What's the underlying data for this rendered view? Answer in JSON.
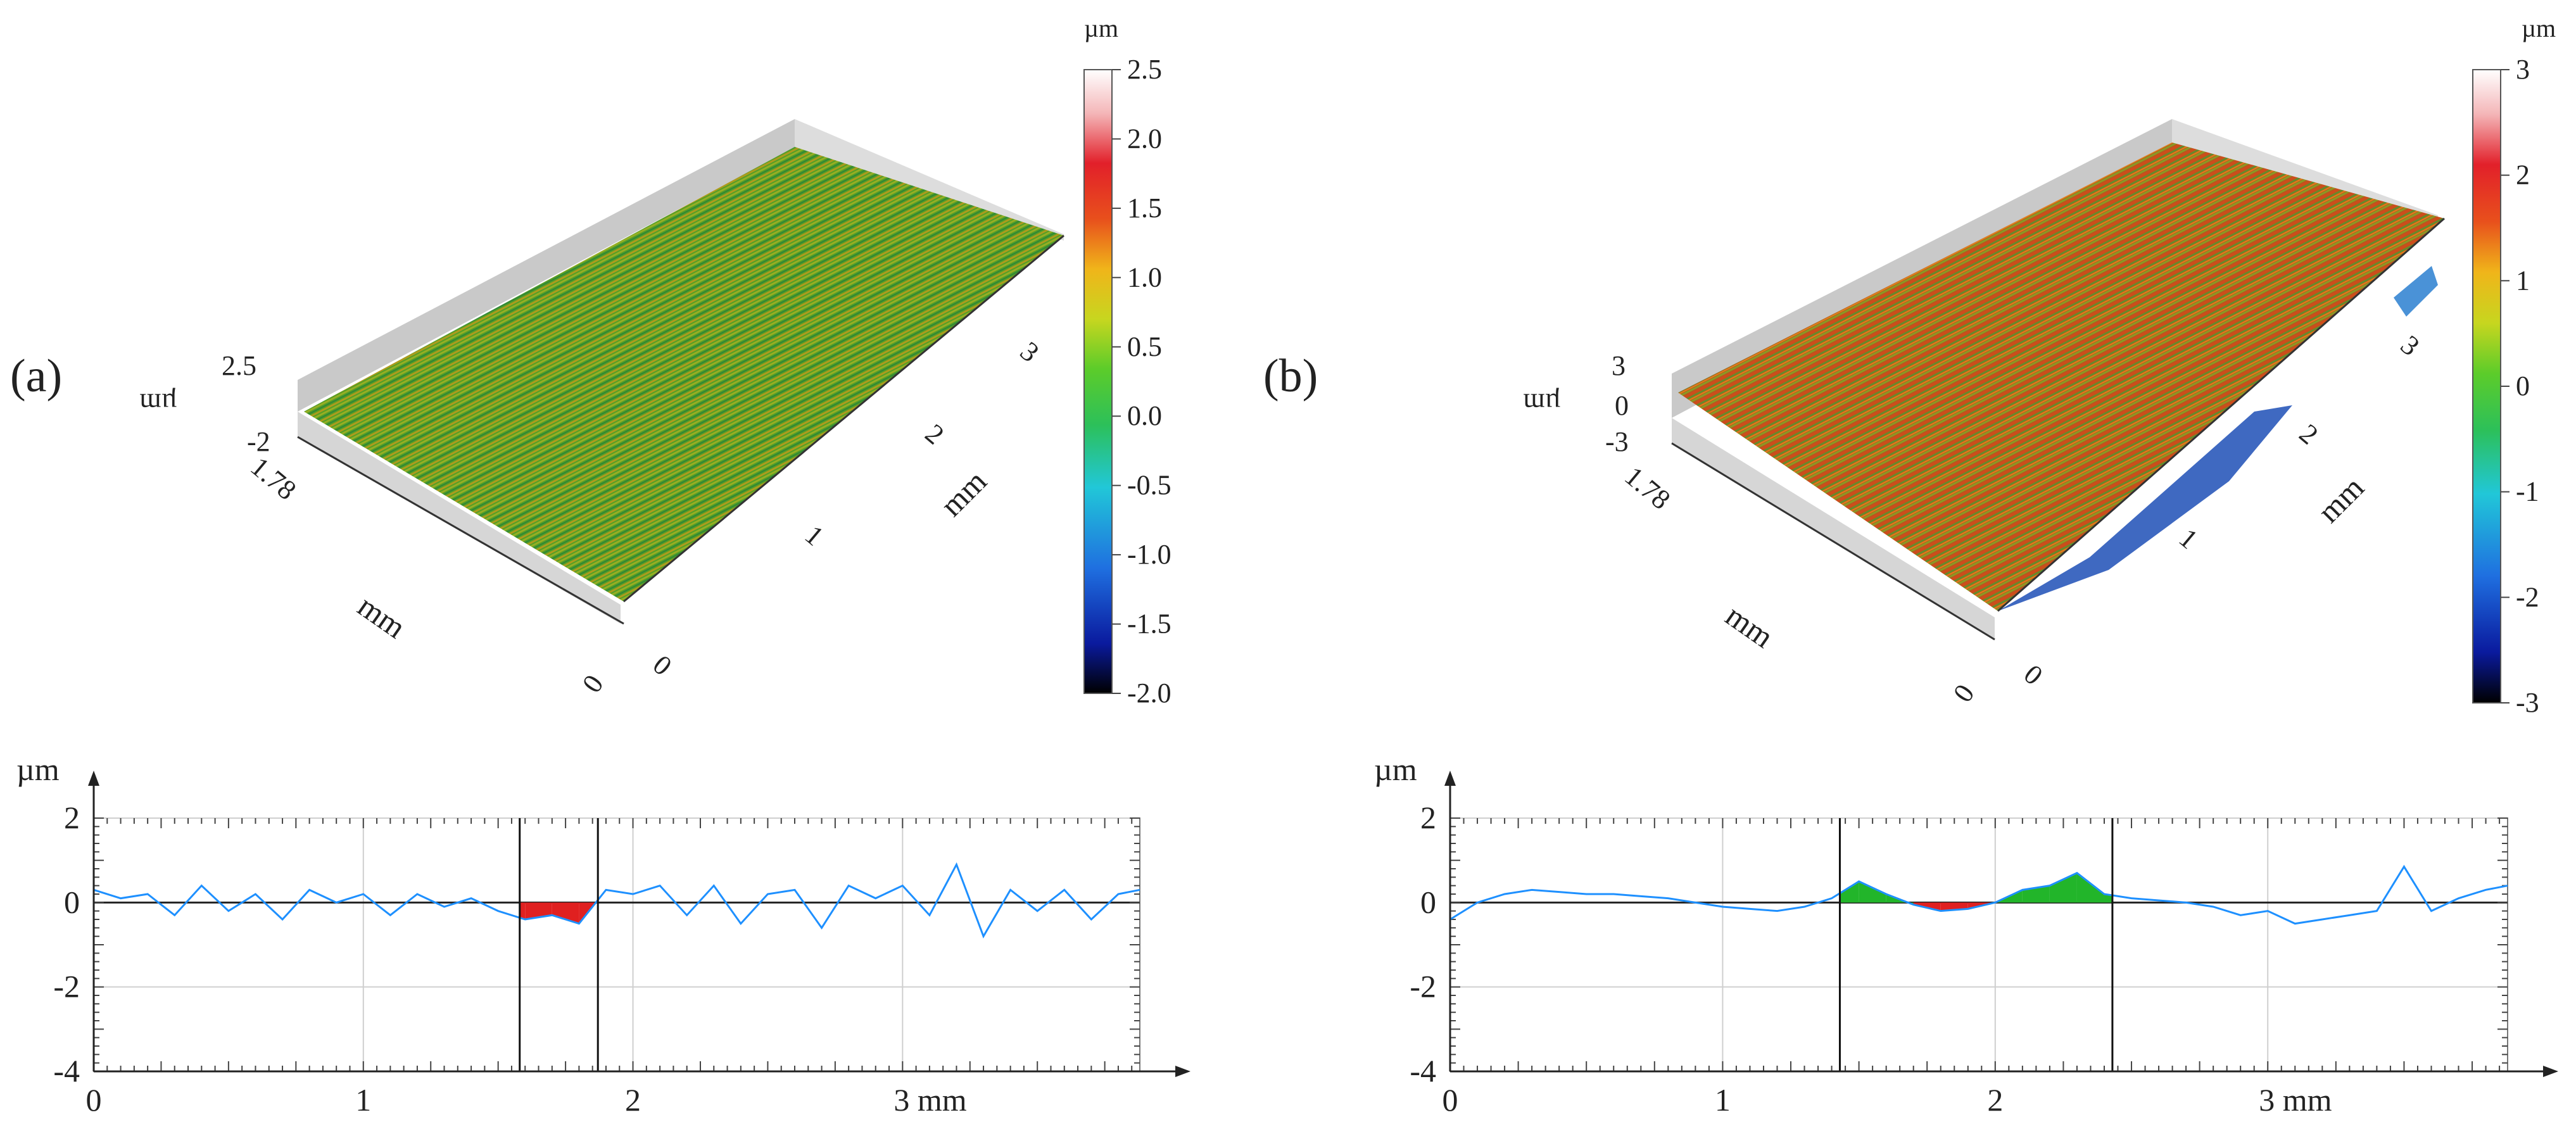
{
  "panels": [
    {
      "label": "(a)",
      "surface": {
        "z_label": "µm",
        "z_ticks": [
          "2.5",
          "-2"
        ],
        "y_label": "mm",
        "y_ticks": [
          "1.78",
          "0"
        ],
        "x_label": "mm",
        "x_ticks": [
          "0",
          "1",
          "2",
          "3"
        ],
        "colorbar": {
          "unit": "µm",
          "ticks": [
            "2.5",
            "2.0",
            "1.5",
            "1.0",
            "0.5",
            "0.0",
            "-0.5",
            "-1.0",
            "-1.5",
            "-2.0"
          ]
        }
      }
    },
    {
      "label": "(b)",
      "surface": {
        "z_label": "µm",
        "z_ticks": [
          "3",
          "0",
          "-3"
        ],
        "y_label": "mm",
        "y_ticks": [
          "1.78",
          "0"
        ],
        "x_label": "mm",
        "x_ticks": [
          "0",
          "1",
          "2",
          "3"
        ],
        "colorbar": {
          "unit": "µm",
          "ticks": [
            "3",
            "2",
            "1",
            "0",
            "-1",
            "-2",
            "-3"
          ]
        }
      }
    }
  ],
  "chart_data": [
    {
      "type": "heatmap",
      "panel": "(a)",
      "z_range": [
        -2.0,
        2.5
      ],
      "colormap": [
        "#000000",
        "#0a1a9e",
        "#1f6fe0",
        "#21c7d8",
        "#2cc05a",
        "#5ccc2a",
        "#c7d61f",
        "#f0b51a",
        "#e8501c",
        "#e2202a",
        "#f4b6b8",
        "#ffffff"
      ],
      "x_ticks_mm": [
        0,
        1,
        2,
        3
      ],
      "y_extent_mm": [
        0,
        1.78
      ]
    },
    {
      "type": "line",
      "panel": "(a)",
      "ylabel": "µm",
      "xunit": "mm",
      "xlim": [
        0,
        3.88
      ],
      "ylim": [
        -4,
        2
      ],
      "yticks": [
        2,
        0,
        -2,
        -4
      ],
      "xticks": [
        0,
        1,
        2,
        3
      ],
      "xtick_labels": [
        "0",
        "1",
        "2",
        "3 mm"
      ],
      "cursors": [
        1.58,
        1.87
      ],
      "series": [
        {
          "x": [
            0,
            0.1,
            0.2,
            0.3,
            0.4,
            0.5,
            0.6,
            0.7,
            0.8,
            0.9,
            1.0,
            1.1,
            1.2,
            1.3,
            1.4,
            1.5,
            1.6,
            1.7,
            1.8,
            1.9,
            2.0,
            2.1,
            2.2,
            2.3,
            2.4,
            2.5,
            2.6,
            2.7,
            2.8,
            2.9,
            3.0,
            3.1,
            3.2,
            3.3,
            3.4,
            3.5,
            3.6,
            3.7,
            3.8,
            3.88
          ],
          "values": [
            0.3,
            0.1,
            0.2,
            -0.3,
            0.4,
            -0.2,
            0.2,
            -0.4,
            0.3,
            0.0,
            0.2,
            -0.3,
            0.2,
            -0.1,
            0.1,
            -0.2,
            -0.4,
            -0.3,
            -0.5,
            0.3,
            0.2,
            0.4,
            -0.3,
            0.4,
            -0.5,
            0.2,
            0.3,
            -0.6,
            0.4,
            0.1,
            0.4,
            -0.3,
            0.9,
            -0.8,
            0.3,
            -0.2,
            0.3,
            -0.4,
            0.2,
            0.3
          ]
        }
      ]
    },
    {
      "type": "heatmap",
      "panel": "(b)",
      "z_range": [
        -3,
        3
      ],
      "colormap": [
        "#000000",
        "#0a1a9e",
        "#1f6fe0",
        "#21c7d8",
        "#2cc05a",
        "#5ccc2a",
        "#c7d61f",
        "#f0b51a",
        "#e8501c",
        "#e2202a",
        "#f4b6b8",
        "#ffffff"
      ],
      "x_ticks_mm": [
        0,
        1,
        2,
        3
      ],
      "y_extent_mm": [
        0,
        1.78
      ]
    },
    {
      "type": "line",
      "panel": "(b)",
      "ylabel": "µm",
      "xunit": "mm",
      "xlim": [
        0,
        3.88
      ],
      "ylim": [
        -4,
        2
      ],
      "yticks": [
        2,
        0,
        -2,
        -4
      ],
      "xticks": [
        0,
        1,
        2,
        3
      ],
      "xtick_labels": [
        "0",
        "1",
        "2",
        "3 mm"
      ],
      "cursors": [
        1.43,
        2.43
      ],
      "series": [
        {
          "x": [
            0,
            0.1,
            0.2,
            0.3,
            0.4,
            0.5,
            0.6,
            0.7,
            0.8,
            0.9,
            1.0,
            1.1,
            1.2,
            1.3,
            1.4,
            1.5,
            1.6,
            1.7,
            1.8,
            1.9,
            2.0,
            2.1,
            2.2,
            2.3,
            2.4,
            2.5,
            2.6,
            2.7,
            2.8,
            2.9,
            3.0,
            3.1,
            3.2,
            3.3,
            3.4,
            3.5,
            3.6,
            3.7,
            3.8,
            3.88
          ],
          "values": [
            -0.4,
            0.0,
            0.2,
            0.3,
            0.25,
            0.2,
            0.2,
            0.15,
            0.1,
            0.0,
            -0.1,
            -0.15,
            -0.2,
            -0.1,
            0.1,
            0.5,
            0.2,
            -0.05,
            -0.2,
            -0.15,
            0.0,
            0.3,
            0.4,
            0.7,
            0.2,
            0.1,
            0.05,
            0.0,
            -0.1,
            -0.3,
            -0.2,
            -0.5,
            -0.4,
            -0.3,
            -0.2,
            0.85,
            -0.2,
            0.1,
            0.3,
            0.4
          ]
        }
      ]
    }
  ]
}
